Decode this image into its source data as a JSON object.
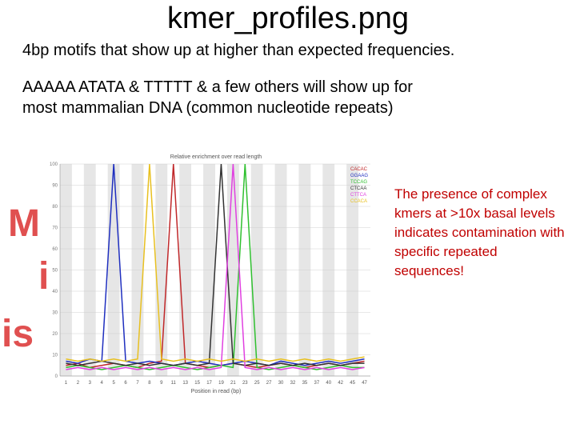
{
  "slide": {
    "title": "kmer_profiles.png",
    "lines": [
      "4bp motifs that show up at higher than expected frequencies.",
      "AAAAA ATATA & TTTTT & a few others will show up for",
      "most mammalian DNA (common nucleotide repeats)"
    ],
    "fragments": [
      "M",
      "i",
      "is"
    ],
    "callout": "The presence of complex kmers at >10x basal levels indicates contamination with specific repeated sequences!"
  },
  "chart_data": {
    "type": "line",
    "title": "Relative enrichment over read length",
    "x_label": "Position in read (bp)",
    "categories": [
      "1",
      "2",
      "3",
      "4",
      "5",
      "6",
      "7",
      "8",
      "9",
      "11",
      "13",
      "15",
      "17",
      "19",
      "21",
      "23",
      "25",
      "27",
      "30",
      "32",
      "35",
      "37",
      "40",
      "42",
      "45",
      "47"
    ],
    "ylim": [
      0,
      100
    ],
    "yticks": [
      0,
      10,
      20,
      30,
      40,
      50,
      60,
      70,
      80,
      90,
      100
    ],
    "grid": true,
    "series": [
      {
        "name": "CACAC",
        "color": "#c0282a",
        "values": [
          5,
          6,
          4,
          5,
          6,
          5,
          4,
          6,
          7,
          100,
          6,
          5,
          4,
          5,
          6,
          5,
          4,
          5,
          6,
          5,
          4,
          5,
          6,
          5,
          6,
          7
        ]
      },
      {
        "name": "GGAAG",
        "color": "#1f2fbf",
        "values": [
          7,
          6,
          8,
          7,
          100,
          7,
          6,
          7,
          6,
          5,
          6,
          7,
          6,
          5,
          6,
          7,
          6,
          5,
          7,
          6,
          5,
          6,
          7,
          6,
          7,
          8
        ]
      },
      {
        "name": "TCCAG",
        "color": "#30c030",
        "values": [
          4,
          5,
          4,
          3,
          4,
          5,
          4,
          3,
          4,
          5,
          4,
          3,
          4,
          5,
          4,
          100,
          4,
          3,
          4,
          5,
          4,
          3,
          4,
          5,
          4,
          4
        ]
      },
      {
        "name": "CTCAA",
        "color": "#333333",
        "values": [
          6,
          5,
          6,
          7,
          6,
          5,
          6,
          5,
          6,
          5,
          6,
          5,
          6,
          100,
          6,
          5,
          6,
          5,
          6,
          5,
          6,
          5,
          6,
          5,
          6,
          6
        ]
      },
      {
        "name": "CTTCA",
        "color": "#e040e0",
        "values": [
          3,
          4,
          3,
          4,
          3,
          4,
          3,
          4,
          3,
          4,
          3,
          4,
          3,
          4,
          100,
          4,
          3,
          4,
          3,
          4,
          3,
          4,
          3,
          4,
          3,
          4
        ]
      },
      {
        "name": "CCACA",
        "color": "#e8c020",
        "values": [
          8,
          7,
          8,
          7,
          8,
          7,
          8,
          100,
          8,
          7,
          8,
          7,
          8,
          7,
          8,
          7,
          8,
          7,
          8,
          7,
          8,
          7,
          8,
          7,
          8,
          9
        ]
      }
    ]
  }
}
